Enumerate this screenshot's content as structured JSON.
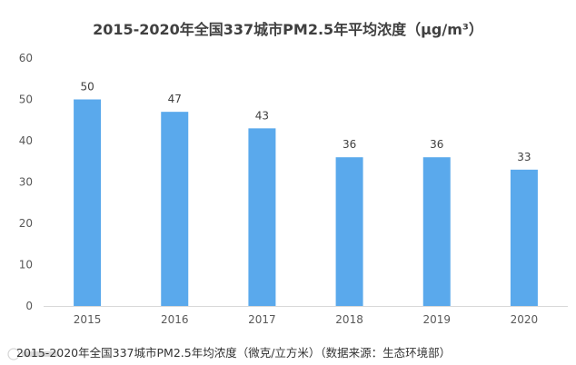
{
  "chart_data": {
    "type": "bar",
    "title": "2015-2020年全国337城市PM2.5年平均浓度（μg/m³）",
    "categories": [
      "2015",
      "2016",
      "2017",
      "2018",
      "2019",
      "2020"
    ],
    "values": [
      50,
      47,
      43,
      36,
      36,
      33
    ],
    "ylim": [
      0,
      60
    ],
    "yticks": [
      0,
      10,
      20,
      30,
      40,
      50,
      60
    ],
    "xlabel": "",
    "ylabel": "",
    "grid": false,
    "bar_color": "#5aa9ec",
    "data_labels": [
      "50",
      "47",
      "43",
      "36",
      "36",
      "33"
    ]
  },
  "caption": "2015-2020年全国337城市PM2.5年均浓度（微克/立方米）（数据来源：生态环境部）"
}
